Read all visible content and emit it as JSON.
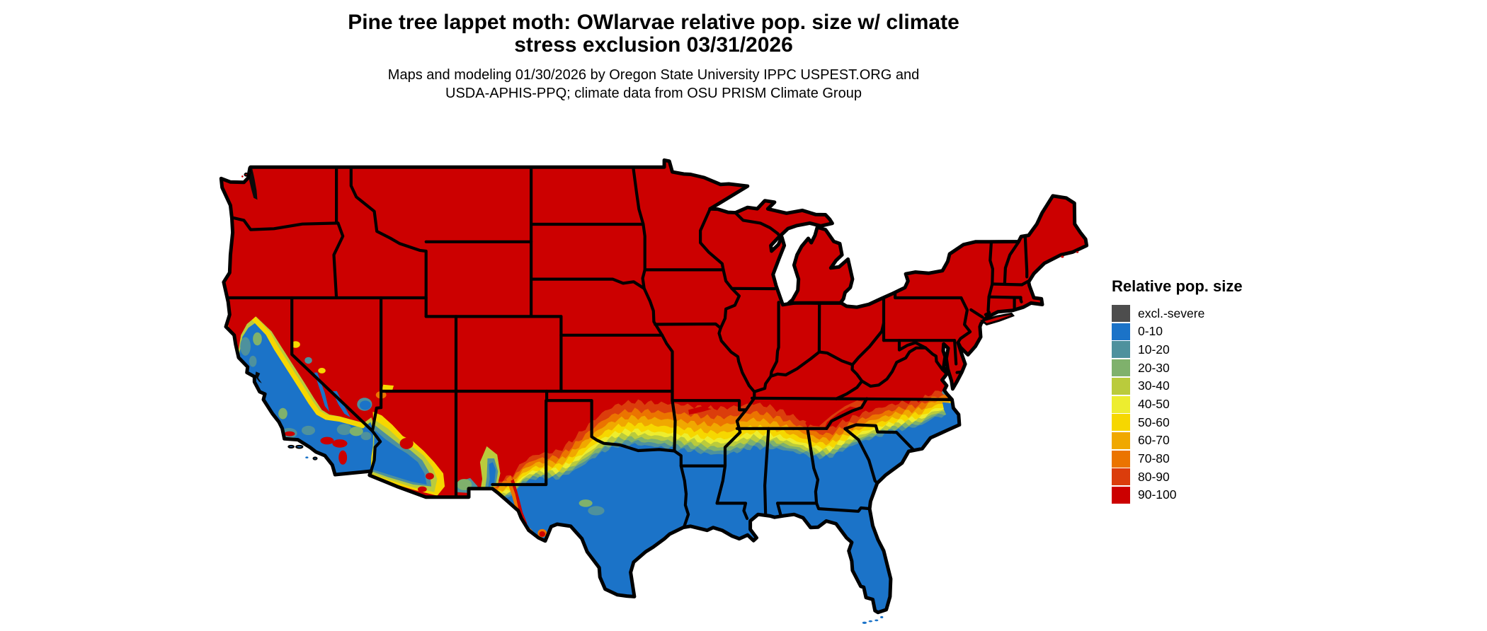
{
  "header": {
    "title1": "Pine tree lappet moth: OWlarvae relative pop. size w/ climate",
    "title2": "stress exclusion 03/31/2026",
    "sub1": "Maps and modeling 01/30/2026 by Oregon State University IPPC USPEST.ORG and",
    "sub2": "USDA-APHIS-PPQ; climate data from OSU PRISM Climate Group"
  },
  "legend": {
    "title": "Relative pop. size",
    "items": [
      {
        "label": "excl.-severe",
        "color": "#4D4D4D"
      },
      {
        "label": "0-10",
        "color": "#1B73C8"
      },
      {
        "label": "10-20",
        "color": "#4E919D"
      },
      {
        "label": "20-30",
        "color": "#7FB16C"
      },
      {
        "label": "30-40",
        "color": "#BACB3C"
      },
      {
        "label": "40-50",
        "color": "#EDED2F"
      },
      {
        "label": "50-60",
        "color": "#F6D700"
      },
      {
        "label": "60-70",
        "color": "#F0A800"
      },
      {
        "label": "70-80",
        "color": "#EB7400"
      },
      {
        "label": "80-90",
        "color": "#DB3D0C"
      },
      {
        "label": "90-100",
        "color": "#CC0000"
      }
    ]
  },
  "colors": {
    "background": "#FFFFFF",
    "boundaries": "#000000",
    "water": "#FFFFFF"
  }
}
